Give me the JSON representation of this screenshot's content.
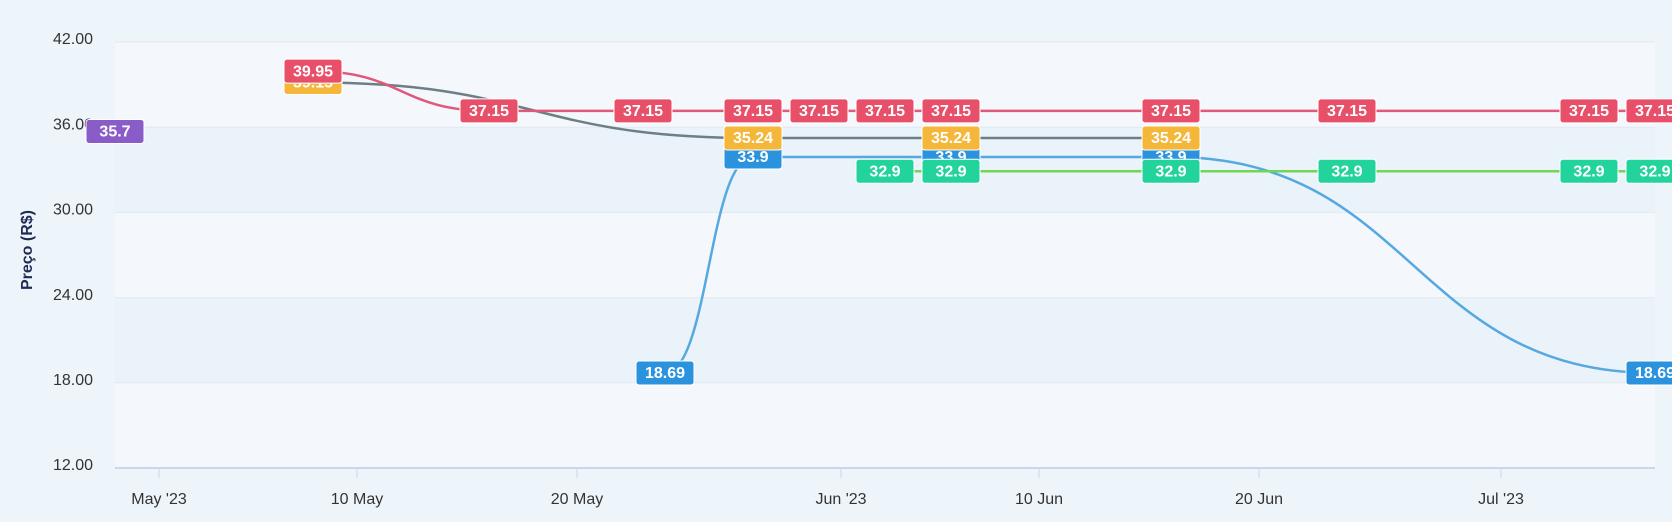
{
  "chart_data": {
    "type": "line",
    "y_label": "Preço (R$)",
    "ylim": [
      12,
      42
    ],
    "yticks": [
      {
        "value": 12,
        "label": "12.00"
      },
      {
        "value": 18,
        "label": "18.00"
      },
      {
        "value": 24,
        "label": "24.00"
      },
      {
        "value": 30,
        "label": "30.00"
      },
      {
        "value": 36,
        "label": "36.00"
      },
      {
        "value": 42,
        "label": "42.00"
      }
    ],
    "xlim": [
      "2023-04-29",
      "2023-07-08"
    ],
    "xticks": [
      {
        "value": "2023-05-01",
        "label": "May '23"
      },
      {
        "value": "2023-05-10",
        "label": "10 May"
      },
      {
        "value": "2023-05-20",
        "label": "20 May"
      },
      {
        "value": "2023-06-01",
        "label": "Jun '23"
      },
      {
        "value": "2023-06-10",
        "label": "10 Jun"
      },
      {
        "value": "2023-06-20",
        "label": "20 Jun"
      },
      {
        "value": "2023-07-01",
        "label": "Jul '23"
      }
    ],
    "grid": true,
    "series": [
      {
        "color": "#8a5cc7",
        "line_color": "#8a5cc7",
        "x": [
          "2023-04-29"
        ],
        "values": [
          35.7
        ]
      },
      {
        "color": "#2b93de",
        "line_color": "#55a8e0",
        "x": [
          "2023-05-24",
          "2023-05-28",
          "2023-06-06",
          "2023-06-16",
          "2023-07-08"
        ],
        "values": [
          18.69,
          33.9,
          33.9,
          33.9,
          18.69
        ]
      },
      {
        "color": "#22d39c",
        "line_color": "#72d655",
        "x": [
          "2023-06-03",
          "2023-06-06",
          "2023-06-16",
          "2023-06-24",
          "2023-07-05",
          "2023-07-08"
        ],
        "values": [
          32.9,
          32.9,
          32.9,
          32.9,
          32.9,
          32.9
        ]
      },
      {
        "color": "#f4b73a",
        "line_color": "#6c7f86",
        "x": [
          "2023-05-08",
          "2023-05-28",
          "2023-06-06",
          "2023-06-16"
        ],
        "values": [
          39.15,
          35.24,
          35.24,
          35.24
        ]
      },
      {
        "color": "#e8506a",
        "line_color": "#e0587a",
        "x": [
          "2023-05-08",
          "2023-05-16",
          "2023-05-23",
          "2023-05-28",
          "2023-05-31",
          "2023-06-03",
          "2023-06-06",
          "2023-06-16",
          "2023-06-24",
          "2023-07-05",
          "2023-07-08"
        ],
        "values": [
          39.95,
          37.15,
          37.15,
          37.15,
          37.15,
          37.15,
          37.15,
          37.15,
          37.15,
          37.15,
          37.15
        ]
      }
    ]
  }
}
